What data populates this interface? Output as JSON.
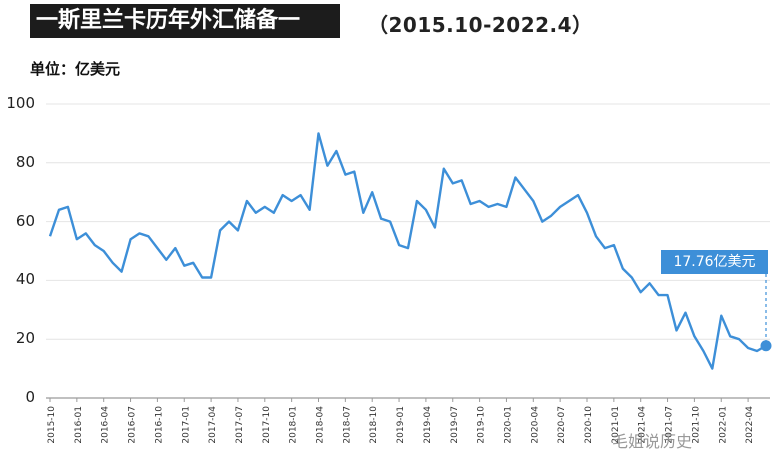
{
  "title": "一斯里兰卡历年外汇储备一",
  "subtitle": "（2015.10-2022.4）",
  "unit_label": "单位：亿美元",
  "callout_text": "17.76亿美元",
  "watermark_text": "毛姐说历史",
  "colors": {
    "line": "#3d8fd8",
    "title_bg": "#1c1c1c",
    "grid": "#e4e4e4"
  },
  "chart_data": {
    "type": "line",
    "title": "一斯里兰卡历年外汇储备一",
    "subtitle": "（2015.10-2022.4）",
    "ylabel": "单位：亿美元",
    "xlabel": "",
    "ylim": [
      0,
      100
    ],
    "yticks": [
      0,
      20,
      40,
      60,
      80,
      100
    ],
    "grid": "horizontal",
    "x_tick_labels": [
      "2015-10",
      "2016-01",
      "2016-04",
      "2016-07",
      "2016-10",
      "2017-01",
      "2017-04",
      "2017-07",
      "2017-10",
      "2018-01",
      "2018-04",
      "2018-07",
      "2018-10",
      "2019-01",
      "2019-04",
      "2019-07",
      "2019-10",
      "2020-01",
      "2020-04",
      "2020-07",
      "2020-10",
      "2021-01",
      "2021-04",
      "2021-07",
      "2021-10",
      "2022-01",
      "2022-04"
    ],
    "series": [
      {
        "values": [
          55,
          64,
          65,
          54,
          56,
          52,
          50,
          46,
          43,
          54,
          56,
          55,
          51,
          47,
          51,
          45,
          46,
          41,
          41,
          57,
          60,
          57,
          67,
          63,
          65,
          63,
          69,
          67,
          69,
          64,
          90,
          79,
          84,
          76,
          77,
          63,
          70,
          61,
          60,
          52,
          51,
          67,
          64,
          58,
          78,
          73,
          74,
          66,
          67,
          65,
          66,
          65,
          75,
          71,
          67,
          60,
          62,
          65,
          67,
          69,
          63,
          55,
          51,
          52,
          44,
          41,
          36,
          39,
          35,
          35,
          23,
          29,
          21,
          16,
          10,
          28,
          21,
          20,
          17,
          16,
          17.76
        ]
      }
    ],
    "annotations": [
      {
        "text": "17.76亿美元",
        "value": 17.76,
        "x_index": 80
      }
    ]
  }
}
